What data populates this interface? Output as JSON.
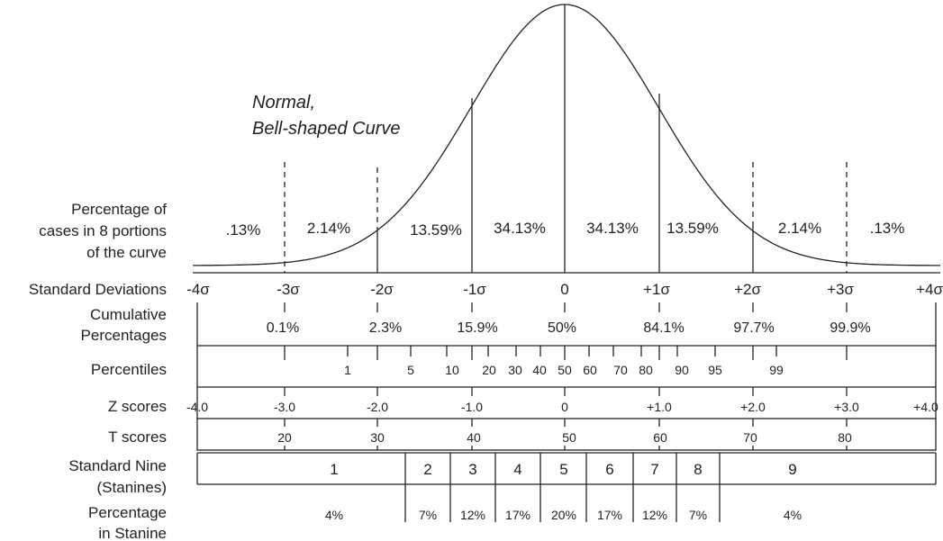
{
  "title_lines": [
    "Normal,",
    "Bell-shaped Curve"
  ],
  "row_labels": {
    "portions": [
      "Percentage of",
      "cases in 8 portions",
      "of the curve"
    ],
    "sd": [
      "Standard Deviations"
    ],
    "cumulative": [
      "Cumulative",
      "Percentages"
    ],
    "percentiles": [
      "Percentiles"
    ],
    "z": [
      "Z scores"
    ],
    "t": [
      "T scores"
    ],
    "stanine": [
      "Standard Nine",
      "(Stanines)"
    ],
    "stanine_pct": [
      "Percentage",
      "in Stanine"
    ]
  },
  "portion_percentages": [
    ".13%",
    "2.14%",
    "13.59%",
    "34.13%",
    "34.13%",
    "13.59%",
    "2.14%",
    ".13%"
  ],
  "sd_labels": [
    "-4σ",
    "-3σ",
    "-2σ",
    "-1σ",
    "0",
    "+1σ",
    "+2σ",
    "+3σ",
    "+4σ"
  ],
  "cumulative": [
    "0.1%",
    "2.3%",
    "15.9%",
    "50%",
    "84.1%",
    "97.7%",
    "99.9%"
  ],
  "percentiles": [
    "1",
    "5",
    "10",
    "20",
    "30",
    "40",
    "50",
    "60",
    "70",
    "80",
    "90",
    "95",
    "99"
  ],
  "z_scores": [
    "-4.0",
    "-3.0",
    "-2.0",
    "-1.0",
    "0",
    "+1.0",
    "+2.0",
    "+3.0",
    "+4.0"
  ],
  "t_scores": [
    "20",
    "30",
    "40",
    "50",
    "60",
    "70",
    "80"
  ],
  "stanines": [
    "1",
    "2",
    "3",
    "4",
    "5",
    "6",
    "7",
    "8",
    "9"
  ],
  "stanine_pct": [
    "4%",
    "7%",
    "12%",
    "17%",
    "20%",
    "17%",
    "12%",
    "7%",
    "4%"
  ]
}
